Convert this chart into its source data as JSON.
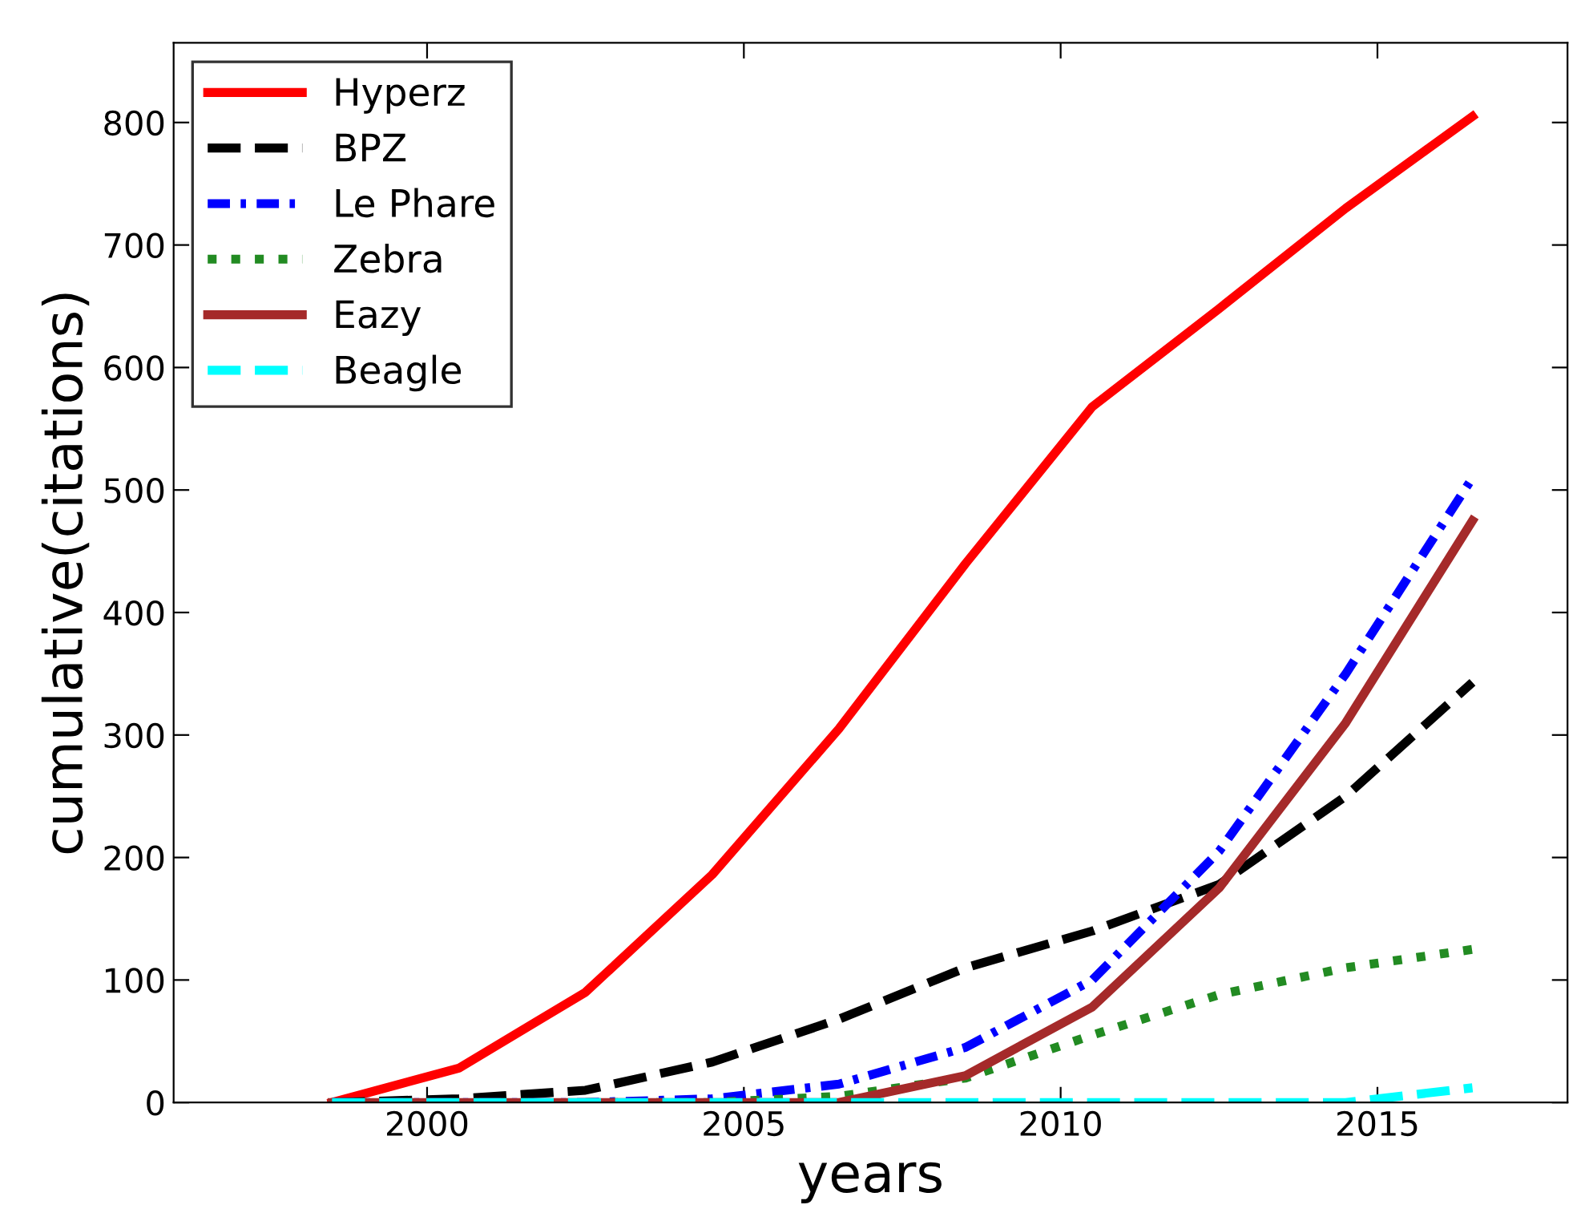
{
  "chart_data": {
    "type": "line",
    "xlabel": "years",
    "ylabel": "cumulative(citations)",
    "x": [
      1998.5,
      2000.5,
      2002.5,
      2004.5,
      2006.5,
      2008.5,
      2010.5,
      2012.5,
      2014.5,
      2016.5
    ],
    "series": [
      {
        "name": "Hyperz",
        "color": "#ff0000",
        "line_style": "solid",
        "values": [
          0,
          28,
          90,
          186,
          305,
          440,
          568,
          648,
          730,
          805
        ]
      },
      {
        "name": "BPZ",
        "color": "#000000",
        "line_style": "dashed",
        "values": [
          0,
          3,
          10,
          33,
          68,
          110,
          140,
          178,
          250,
          343
        ]
      },
      {
        "name": "Le Phare",
        "color": "#0000ff",
        "line_style": "dashdot",
        "values": [
          0,
          0,
          0,
          3,
          15,
          45,
          100,
          205,
          350,
          510
        ]
      },
      {
        "name": "Zebra",
        "color": "#228b22",
        "line_style": "dotted",
        "values": [
          null,
          null,
          0,
          0,
          5,
          20,
          55,
          88,
          110,
          125
        ]
      },
      {
        "name": "Eazy",
        "color": "#a52a2a",
        "line_style": "solid",
        "values": [
          0,
          0,
          0,
          0,
          0,
          22,
          78,
          175,
          310,
          475
        ]
      },
      {
        "name": "Beagle",
        "color": "#00ffff",
        "line_style": "dashed",
        "values": [
          0,
          0,
          0,
          0,
          0,
          0,
          0,
          0,
          0,
          12
        ]
      }
    ],
    "xlim": [
      1996,
      2018
    ],
    "xticks": [
      2000,
      2005,
      2010,
      2015
    ],
    "ylim": [
      0,
      865
    ],
    "yticks": [
      0,
      100,
      200,
      300,
      400,
      500,
      600,
      700,
      800
    ],
    "grid": false,
    "legend": "top left",
    "marker": "none"
  }
}
